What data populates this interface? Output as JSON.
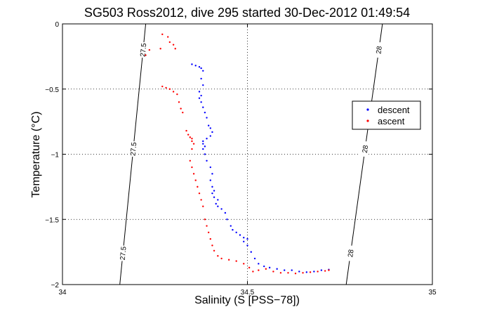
{
  "chart_data": {
    "type": "scatter",
    "title": "SG503 Ross2012, dive 295 started 30-Dec-2012 01:49:54",
    "xlabel": "Salinity (S [PSS−78])",
    "ylabel": "Temperature (°C)",
    "xlim": [
      34,
      35
    ],
    "ylim": [
      -2,
      0
    ],
    "x_ticks": [
      {
        "value": 34,
        "label": "34"
      },
      {
        "value": 34.5,
        "label": "34.5"
      },
      {
        "value": 35,
        "label": "35"
      }
    ],
    "y_ticks": [
      {
        "value": 0,
        "label": "0"
      },
      {
        "value": -0.5,
        "label": "−0.5"
      },
      {
        "value": -1,
        "label": "−1"
      },
      {
        "value": -1.5,
        "label": "−1.5"
      },
      {
        "value": -2,
        "label": "−2"
      }
    ],
    "grid": true,
    "legend": {
      "placement": "right",
      "entries": [
        {
          "name": "descent",
          "color": "#0000ff"
        },
        {
          "name": "ascent",
          "color": "#ff0000"
        }
      ]
    },
    "isopycnals": [
      {
        "label": "27.5",
        "points": [
          [
            34.225,
            0
          ],
          [
            34.155,
            -2
          ]
        ]
      },
      {
        "label": "28",
        "points": [
          [
            34.865,
            0
          ],
          [
            34.767,
            -2
          ]
        ]
      }
    ],
    "series": [
      {
        "name": "descent",
        "color": "#0000ff",
        "points": [
          [
            34.35,
            -0.31
          ],
          [
            34.36,
            -0.32
          ],
          [
            34.37,
            -0.33
          ],
          [
            34.375,
            -0.34
          ],
          [
            34.38,
            -0.36
          ],
          [
            34.375,
            -0.42
          ],
          [
            34.38,
            -0.47
          ],
          [
            34.37,
            -0.52
          ],
          [
            34.375,
            -0.55
          ],
          [
            34.37,
            -0.57
          ],
          [
            34.375,
            -0.6
          ],
          [
            34.38,
            -0.64
          ],
          [
            34.385,
            -0.68
          ],
          [
            34.39,
            -0.72
          ],
          [
            34.395,
            -0.78
          ],
          [
            34.4,
            -0.8
          ],
          [
            34.405,
            -0.83
          ],
          [
            34.4,
            -0.86
          ],
          [
            34.39,
            -0.88
          ],
          [
            34.38,
            -0.9
          ],
          [
            34.38,
            -0.92
          ],
          [
            34.385,
            -0.94
          ],
          [
            34.38,
            -0.96
          ],
          [
            34.385,
            -1.0
          ],
          [
            34.39,
            -1.05
          ],
          [
            34.4,
            -1.1
          ],
          [
            34.405,
            -1.15
          ],
          [
            34.4,
            -1.2
          ],
          [
            34.405,
            -1.25
          ],
          [
            34.41,
            -1.28
          ],
          [
            34.405,
            -1.3
          ],
          [
            34.41,
            -1.33
          ],
          [
            34.42,
            -1.35
          ],
          [
            34.415,
            -1.38
          ],
          [
            34.42,
            -1.4
          ],
          [
            34.43,
            -1.42
          ],
          [
            34.44,
            -1.45
          ],
          [
            34.445,
            -1.5
          ],
          [
            34.455,
            -1.55
          ],
          [
            34.46,
            -1.58
          ],
          [
            34.47,
            -1.6
          ],
          [
            34.48,
            -1.62
          ],
          [
            34.49,
            -1.64
          ],
          [
            34.5,
            -1.65
          ],
          [
            34.49,
            -1.67
          ],
          [
            34.5,
            -1.7
          ],
          [
            34.51,
            -1.75
          ],
          [
            34.52,
            -1.8
          ],
          [
            34.53,
            -1.84
          ],
          [
            34.545,
            -1.86
          ],
          [
            34.56,
            -1.87
          ],
          [
            34.58,
            -1.88
          ],
          [
            34.6,
            -1.89
          ],
          [
            34.62,
            -1.89
          ],
          [
            34.64,
            -1.9
          ],
          [
            34.66,
            -1.905
          ],
          [
            34.68,
            -1.9
          ],
          [
            34.7,
            -1.89
          ],
          [
            34.72,
            -1.885
          ]
        ]
      },
      {
        "name": "ascent",
        "color": "#ff0000",
        "points": [
          [
            34.27,
            -0.08
          ],
          [
            34.285,
            -0.1
          ],
          [
            34.29,
            -0.14
          ],
          [
            34.3,
            -0.16
          ],
          [
            34.305,
            -0.19
          ],
          [
            34.265,
            -0.19
          ],
          [
            34.235,
            -0.2
          ],
          [
            34.225,
            -0.24
          ],
          [
            34.27,
            -0.48
          ],
          [
            34.28,
            -0.49
          ],
          [
            34.29,
            -0.5
          ],
          [
            34.3,
            -0.52
          ],
          [
            34.31,
            -0.54
          ],
          [
            34.315,
            -0.6
          ],
          [
            34.32,
            -0.65
          ],
          [
            34.325,
            -0.68
          ],
          [
            34.335,
            -0.82
          ],
          [
            34.34,
            -0.85
          ],
          [
            34.345,
            -0.87
          ],
          [
            34.35,
            -0.88
          ],
          [
            34.35,
            -0.9
          ],
          [
            34.355,
            -0.92
          ],
          [
            34.35,
            -0.96
          ],
          [
            34.345,
            -1.05
          ],
          [
            34.35,
            -1.1
          ],
          [
            34.355,
            -1.15
          ],
          [
            34.36,
            -1.2
          ],
          [
            34.365,
            -1.25
          ],
          [
            34.37,
            -1.3
          ],
          [
            34.375,
            -1.35
          ],
          [
            34.38,
            -1.4
          ],
          [
            34.385,
            -1.5
          ],
          [
            34.39,
            -1.55
          ],
          [
            34.395,
            -1.6
          ],
          [
            34.4,
            -1.65
          ],
          [
            34.405,
            -1.7
          ],
          [
            34.41,
            -1.74
          ],
          [
            34.42,
            -1.78
          ],
          [
            34.43,
            -1.8
          ],
          [
            34.45,
            -1.81
          ],
          [
            34.47,
            -1.82
          ],
          [
            34.49,
            -1.84
          ],
          [
            34.505,
            -1.87
          ],
          [
            34.515,
            -1.9
          ],
          [
            34.53,
            -1.89
          ],
          [
            34.55,
            -1.88
          ],
          [
            34.57,
            -1.9
          ],
          [
            34.59,
            -1.91
          ],
          [
            34.61,
            -1.91
          ],
          [
            34.63,
            -1.915
          ],
          [
            34.65,
            -1.91
          ],
          [
            34.67,
            -1.905
          ],
          [
            34.69,
            -1.9
          ],
          [
            34.71,
            -1.895
          ],
          [
            34.72,
            -1.89
          ]
        ]
      }
    ]
  }
}
